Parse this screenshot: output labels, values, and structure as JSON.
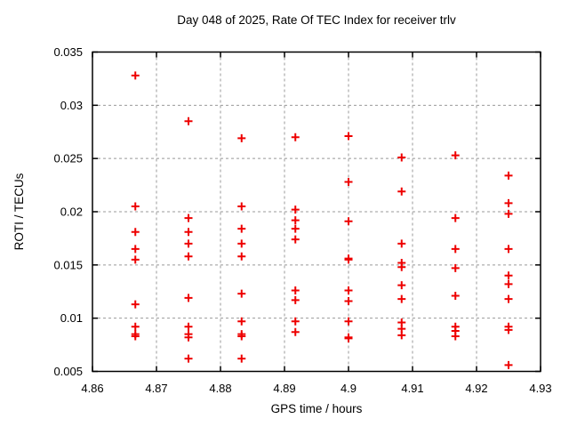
{
  "page": {
    "background": "#ffffff",
    "text_color": "#000000"
  },
  "chart_data": {
    "type": "scatter",
    "title": "Day 048 of 2025, Rate Of TEC Index for receiver trlv",
    "xlabel": "GPS time / hours",
    "ylabel": "ROTI / TECUs",
    "xlim": [
      4.86,
      4.93
    ],
    "ylim": [
      0.005,
      0.035
    ],
    "xticks": [
      4.86,
      4.87,
      4.88,
      4.89,
      4.9,
      4.91,
      4.92,
      4.93
    ],
    "xtick_labels": [
      "4.86",
      "4.87",
      "4.88",
      "4.89",
      "4.9",
      "4.91",
      "4.92",
      "4.93"
    ],
    "yticks": [
      0.005,
      0.01,
      0.015,
      0.02,
      0.025,
      0.03,
      0.035
    ],
    "ytick_labels": [
      "0.005",
      "0.01",
      "0.015",
      "0.02",
      "0.025",
      "0.03",
      "0.035"
    ],
    "grid": true,
    "legend": "none",
    "border_color": "#000000",
    "grid_color": "#999999",
    "marker": {
      "shape": "plus",
      "color": "#ee0000",
      "size": 9
    },
    "series": [
      {
        "name": "ROTI",
        "points": [
          [
            4.8667,
            0.0328
          ],
          [
            4.8667,
            0.0205
          ],
          [
            4.8667,
            0.0181
          ],
          [
            4.8667,
            0.0165
          ],
          [
            4.8667,
            0.0155
          ],
          [
            4.8667,
            0.0113
          ],
          [
            4.8667,
            0.0092
          ],
          [
            4.8667,
            0.0085
          ],
          [
            4.8667,
            0.0083
          ],
          [
            4.875,
            0.0285
          ],
          [
            4.875,
            0.0194
          ],
          [
            4.875,
            0.0181
          ],
          [
            4.875,
            0.017
          ],
          [
            4.875,
            0.0158
          ],
          [
            4.875,
            0.0119
          ],
          [
            4.875,
            0.0092
          ],
          [
            4.875,
            0.0085
          ],
          [
            4.875,
            0.0082
          ],
          [
            4.875,
            0.0062
          ],
          [
            4.8833,
            0.0269
          ],
          [
            4.8833,
            0.0205
          ],
          [
            4.8833,
            0.0184
          ],
          [
            4.8833,
            0.017
          ],
          [
            4.8833,
            0.0158
          ],
          [
            4.8833,
            0.0123
          ],
          [
            4.8833,
            0.0097
          ],
          [
            4.8833,
            0.0085
          ],
          [
            4.8833,
            0.0083
          ],
          [
            4.8833,
            0.0062
          ],
          [
            4.8917,
            0.027
          ],
          [
            4.8917,
            0.0202
          ],
          [
            4.8917,
            0.0192
          ],
          [
            4.8917,
            0.0184
          ],
          [
            4.8917,
            0.0174
          ],
          [
            4.8917,
            0.0126
          ],
          [
            4.8917,
            0.0117
          ],
          [
            4.8917,
            0.0097
          ],
          [
            4.8917,
            0.0087
          ],
          [
            4.9,
            0.0271
          ],
          [
            4.9,
            0.0228
          ],
          [
            4.9,
            0.0191
          ],
          [
            4.9,
            0.0156
          ],
          [
            4.9,
            0.0155
          ],
          [
            4.9,
            0.0126
          ],
          [
            4.9,
            0.0116
          ],
          [
            4.9,
            0.0097
          ],
          [
            4.9,
            0.0082
          ],
          [
            4.9,
            0.0081
          ],
          [
            4.9083,
            0.0251
          ],
          [
            4.9083,
            0.0219
          ],
          [
            4.9083,
            0.017
          ],
          [
            4.9083,
            0.0152
          ],
          [
            4.9083,
            0.0148
          ],
          [
            4.9083,
            0.0131
          ],
          [
            4.9083,
            0.0118
          ],
          [
            4.9083,
            0.0096
          ],
          [
            4.9083,
            0.009
          ],
          [
            4.9083,
            0.0084
          ],
          [
            4.9167,
            0.0253
          ],
          [
            4.9167,
            0.0194
          ],
          [
            4.9167,
            0.0165
          ],
          [
            4.9167,
            0.0147
          ],
          [
            4.9167,
            0.0121
          ],
          [
            4.9167,
            0.0092
          ],
          [
            4.9167,
            0.0088
          ],
          [
            4.9167,
            0.0083
          ],
          [
            4.925,
            0.0234
          ],
          [
            4.925,
            0.0208
          ],
          [
            4.925,
            0.0198
          ],
          [
            4.925,
            0.0165
          ],
          [
            4.925,
            0.014
          ],
          [
            4.925,
            0.0132
          ],
          [
            4.925,
            0.0118
          ],
          [
            4.925,
            0.0092
          ],
          [
            4.925,
            0.0089
          ],
          [
            4.925,
            0.0056
          ]
        ]
      }
    ]
  }
}
